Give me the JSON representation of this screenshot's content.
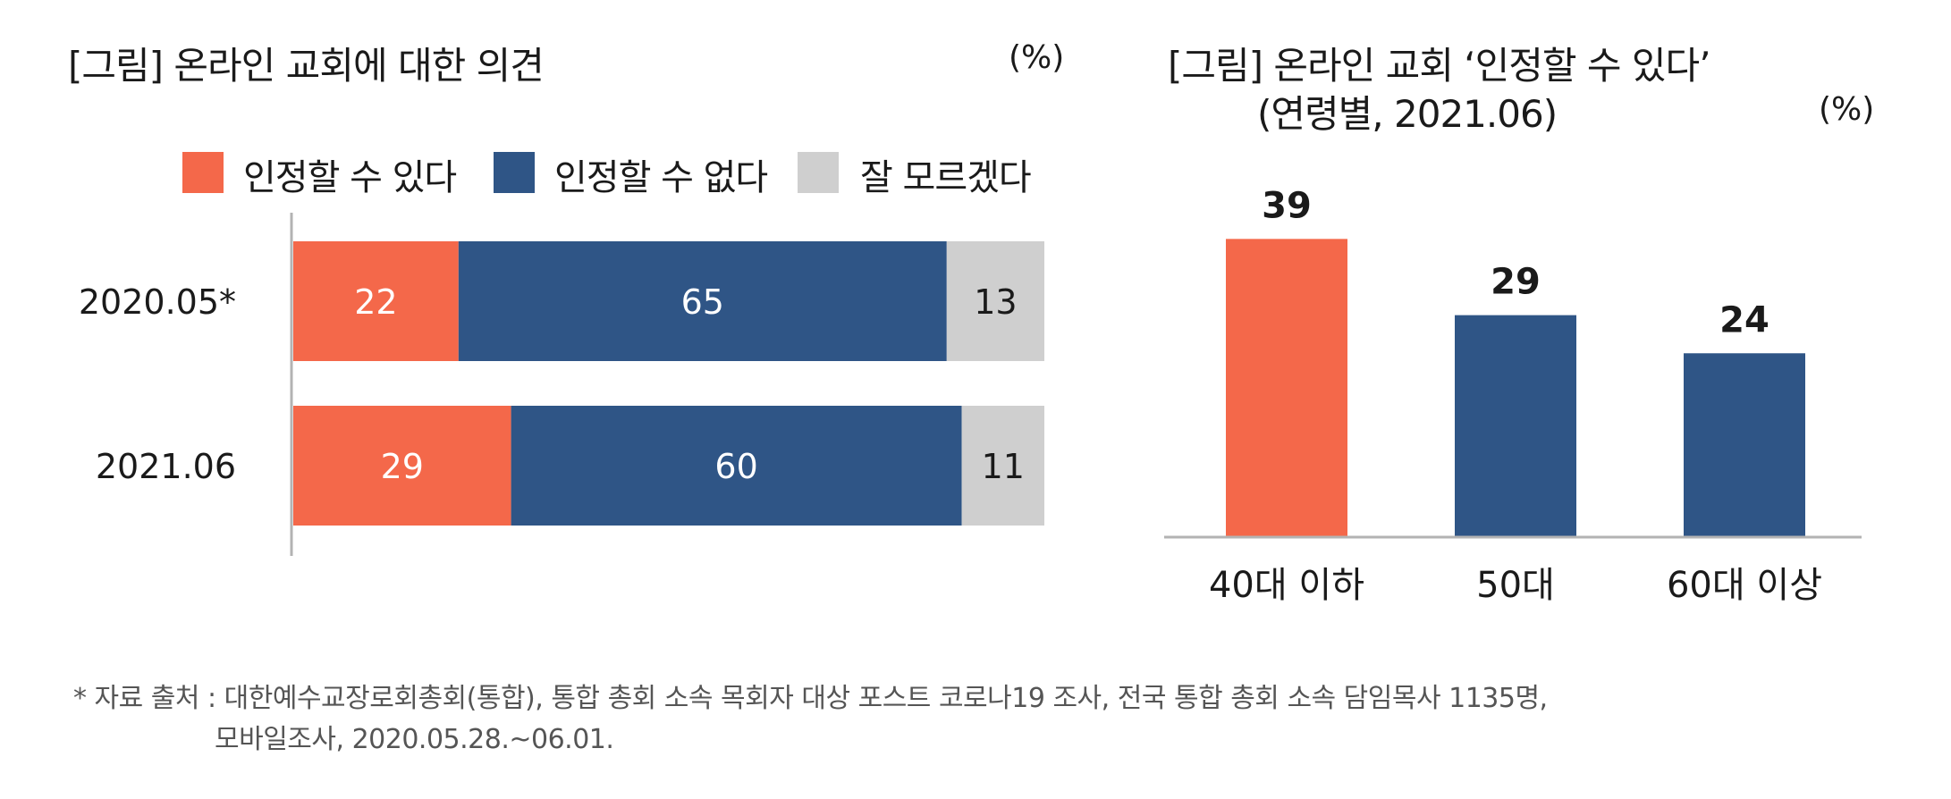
{
  "colors": {
    "can_accept": "#F4684A",
    "cannot_accept": "#2F5586",
    "dont_know": "#CFCFCF"
  },
  "left": {
    "title": "[그림] 온라인 교회에 대한 의견",
    "unit": "(%)",
    "legend": [
      "인정할 수 있다",
      "인정할 수 없다",
      "잘 모르겠다"
    ]
  },
  "right": {
    "title_line1": "[그림] 온라인 교회 ‘인정할 수 있다’",
    "title_line2": "(연령별, 2021.06)",
    "unit": "(%)",
    "categories": [
      "40대 이하",
      "50대",
      "60대 이상"
    ]
  },
  "footnote": {
    "line1": "* 자료 출처 : 대한예수교장로회총회(통합), 통합 총회 소속 목회자 대상 포스트 코로나19 조사, 전국 통합 총회 소속 담임목사 1135명,",
    "line2": "모바일조사, 2020.05.28.~06.01."
  },
  "chart_data": [
    {
      "type": "bar",
      "orientation": "horizontal",
      "stacked": true,
      "title": "[그림] 온라인 교회에 대한 의견",
      "unit": "(%)",
      "categories": [
        "2020.05*",
        "2021.06"
      ],
      "series": [
        {
          "name": "인정할 수 있다",
          "values": [
            22,
            29
          ],
          "color": "#F4684A"
        },
        {
          "name": "인정할 수 없다",
          "values": [
            65,
            60
          ],
          "color": "#2F5586"
        },
        {
          "name": "잘 모르겠다",
          "values": [
            13,
            11
          ],
          "color": "#CFCFCF"
        }
      ],
      "xlim": [
        0,
        100
      ],
      "legend": "top",
      "grid": false
    },
    {
      "type": "bar",
      "orientation": "vertical",
      "title": "[그림] 온라인 교회 ‘인정할 수 있다’ (연령별, 2021.06)",
      "unit": "(%)",
      "categories": [
        "40대 이하",
        "50대",
        "60대 이상"
      ],
      "values": [
        39,
        29,
        24
      ],
      "colors": [
        "#F4684A",
        "#2F5586",
        "#2F5586"
      ],
      "ylim": [
        0,
        39
      ],
      "grid": false
    }
  ]
}
